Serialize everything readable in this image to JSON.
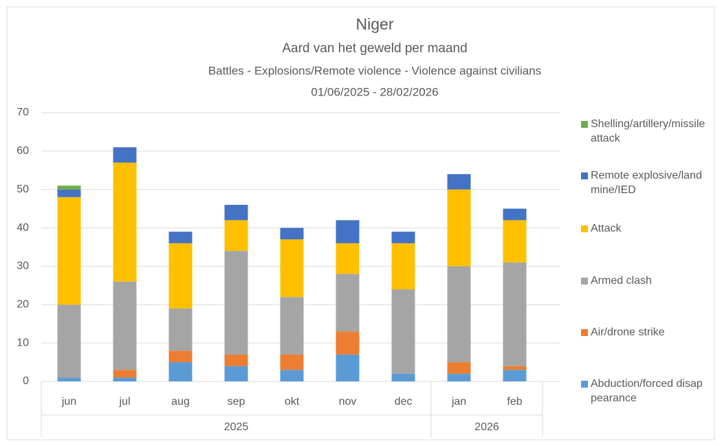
{
  "chart_data": {
    "type": "stacked_bar",
    "title": "Niger",
    "subtitle": "Aard van het geweld per maand",
    "subtitle2": "Battles - Explosions/Remote violence - Violence against civilians",
    "date_range": "01/06/2025 - 28/02/2026",
    "categories": [
      "jun",
      "jul",
      "aug",
      "sep",
      "okt",
      "nov",
      "dec",
      "jan",
      "feb"
    ],
    "category_groups": [
      {
        "label": "2025",
        "count": 7
      },
      {
        "label": "2026",
        "count": 2
      }
    ],
    "ylim": [
      0,
      70
    ],
    "yticks": [
      0,
      10,
      20,
      30,
      40,
      50,
      60,
      70
    ],
    "grid": true,
    "legend": "right",
    "series": [
      {
        "name": "Abduction/forced disappearance",
        "color": "#5b9bd5",
        "values": [
          1,
          1,
          5,
          4,
          3,
          7,
          2,
          2,
          3
        ]
      },
      {
        "name": "Air/drone strike",
        "color": "#ed7d31",
        "values": [
          0,
          2,
          3,
          3,
          4,
          6,
          0,
          3,
          1
        ]
      },
      {
        "name": "Armed clash",
        "color": "#a5a5a5",
        "values": [
          19,
          23,
          11,
          27,
          15,
          15,
          22,
          25,
          27
        ]
      },
      {
        "name": "Attack",
        "color": "#ffc000",
        "values": [
          28,
          31,
          17,
          8,
          15,
          8,
          12,
          20,
          11
        ]
      },
      {
        "name": "Remote explosive/landmine/IED",
        "color": "#4472c4",
        "values": [
          2,
          4,
          3,
          4,
          3,
          6,
          3,
          4,
          3
        ]
      },
      {
        "name": "Shelling/artillery/missile attack",
        "color": "#70ad47",
        "values": [
          1,
          0,
          0,
          0,
          0,
          0,
          0,
          0,
          0
        ]
      }
    ]
  }
}
